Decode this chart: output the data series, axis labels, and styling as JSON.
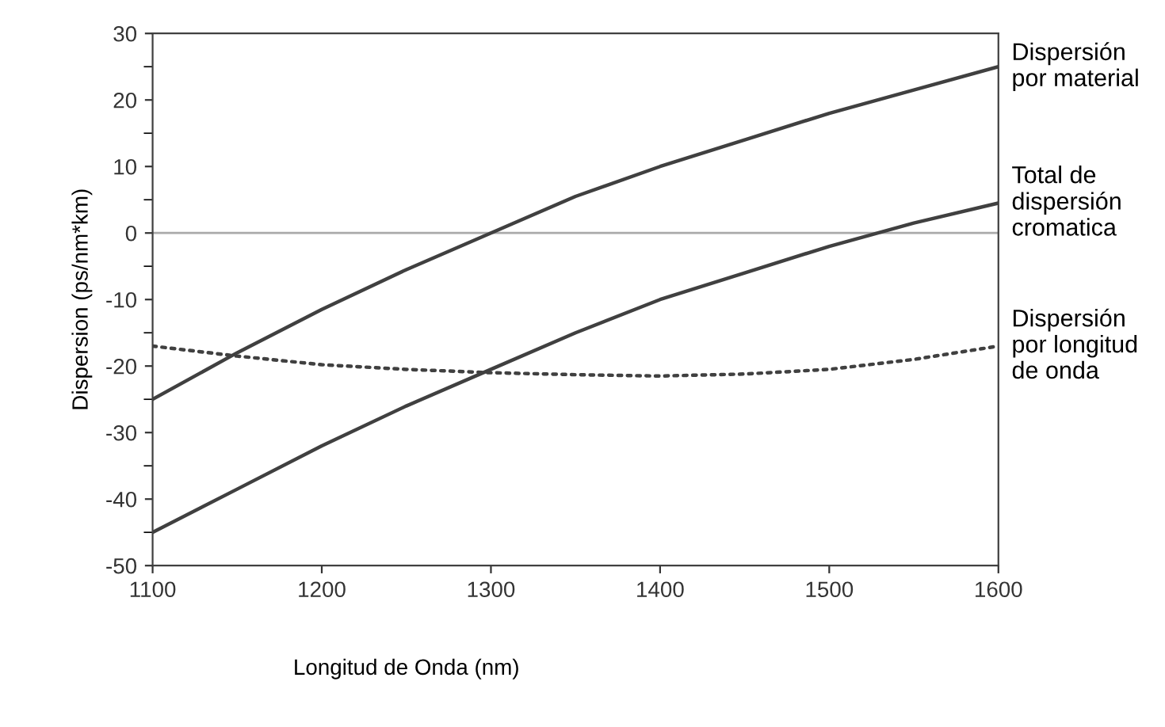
{
  "chart_data": {
    "type": "line",
    "xlabel": "Longitud de Onda (nm)",
    "ylabel": "Dispersion (ps/nm*km)",
    "x": [
      1100,
      1150,
      1200,
      1250,
      1300,
      1350,
      1400,
      1450,
      1500,
      1550,
      1600
    ],
    "series": [
      {
        "name": "Dispersión\npor material",
        "color": "#404040",
        "values": [
          -25,
          -18,
          -11.5,
          -5.5,
          0,
          5.5,
          10,
          14,
          18,
          21.5,
          25
        ]
      },
      {
        "name": "Total de\ndispersión\ncromatica",
        "color": "#404040",
        "values": [
          -45,
          -38.5,
          -32,
          -26,
          -20.5,
          -15,
          -10,
          -6,
          -2,
          1.5,
          4.5
        ]
      },
      {
        "name": "Dispersión\npor longitud\nde onda",
        "color": "#404040",
        "line_style": "dotted",
        "values": [
          -17,
          -18.5,
          -19.8,
          -20.5,
          -21,
          -21.3,
          -21.5,
          -21.2,
          -20.5,
          -19,
          -17
        ]
      }
    ],
    "xlim": [
      1100,
      1600
    ],
    "xticks": [
      1100,
      1200,
      1300,
      1400,
      1500,
      1600
    ],
    "ylim": [
      -50,
      30
    ],
    "yticks": [
      -50,
      -40,
      -30,
      -20,
      -10,
      0,
      10,
      20,
      30
    ],
    "ref_lines": [
      {
        "axis": "y",
        "value": 0,
        "color": "#aaaaaa"
      }
    ],
    "grid": false,
    "legend": false,
    "marker": "none"
  }
}
